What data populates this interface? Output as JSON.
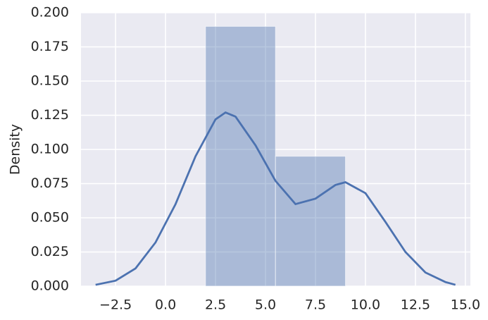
{
  "chart_data": {
    "type": "histogram",
    "ylabel": "Density",
    "bins": [
      2,
      5.5,
      9
    ],
    "values": [
      0.19,
      0.095
    ],
    "color": "#4c72b0",
    "kde": {
      "x": [
        -3.5,
        -2.5,
        -1.5,
        -0.5,
        0,
        0.5,
        1.5,
        2.5,
        3.0,
        3.5,
        4.5,
        5.5,
        6.5,
        7.5,
        8.5,
        9.0,
        10,
        11,
        12,
        13,
        14,
        14.5
      ],
      "y": [
        0.001,
        0.004,
        0.013,
        0.032,
        0.046,
        0.06,
        0.095,
        0.122,
        0.127,
        0.124,
        0.103,
        0.077,
        0.06,
        0.064,
        0.074,
        0.076,
        0.068,
        0.047,
        0.025,
        0.01,
        0.003,
        0.001
      ]
    },
    "xlim": [
      -4.23,
      15.25
    ],
    "ylim": [
      0,
      0.2
    ],
    "xticks": [
      {
        "value": -2.5,
        "label": "−2.5"
      },
      {
        "value": 0,
        "label": "0.0"
      },
      {
        "value": 2.5,
        "label": "2.5"
      },
      {
        "value": 5,
        "label": "5.0"
      },
      {
        "value": 7.5,
        "label": "7.5"
      },
      {
        "value": 10,
        "label": "10.0"
      },
      {
        "value": 12.5,
        "label": "12.5"
      },
      {
        "value": 15,
        "label": "15.0"
      }
    ],
    "yticks": [
      {
        "value": 0,
        "label": "0.000"
      },
      {
        "value": 0.025,
        "label": "0.025"
      },
      {
        "value": 0.05,
        "label": "0.050"
      },
      {
        "value": 0.075,
        "label": "0.075"
      },
      {
        "value": 0.1,
        "label": "0.100"
      },
      {
        "value": 0.125,
        "label": "0.125"
      },
      {
        "value": 0.15,
        "label": "0.150"
      },
      {
        "value": 0.175,
        "label": "0.175"
      },
      {
        "value": 0.2,
        "label": "0.200"
      }
    ],
    "grid": true
  }
}
